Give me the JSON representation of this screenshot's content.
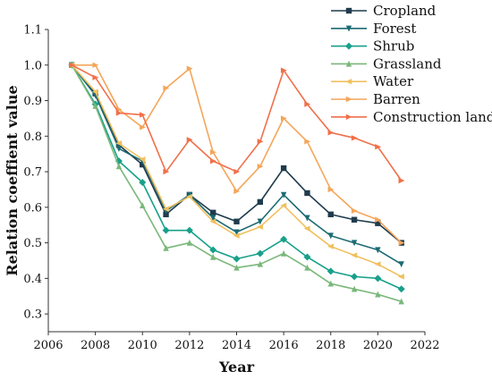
{
  "chart_data": {
    "type": "line",
    "xlabel": "Year",
    "ylabel": "Relation coeffient value",
    "xlim": [
      2006,
      2022
    ],
    "ylim": [
      0.25,
      1.1
    ],
    "xticks": [
      2006,
      2008,
      2010,
      2012,
      2014,
      2016,
      2018,
      2020,
      2022
    ],
    "yticks": [
      0.3,
      0.4,
      0.5,
      0.6,
      0.7,
      0.8,
      0.9,
      1.0,
      1.1
    ],
    "xtick_labels": [
      "2006",
      "2008",
      "2010",
      "2012",
      "2014",
      "2016",
      "2018",
      "2020",
      "2022"
    ],
    "ytick_labels": [
      "0.3",
      "0.4",
      "0.5",
      "0.6",
      "0.7",
      "0.8",
      "0.9",
      "1.0",
      "1.1"
    ],
    "grid": false,
    "legend_position": "top-right",
    "x": [
      2007,
      2008,
      2009,
      2010,
      2011,
      2012,
      2013,
      2014,
      2015,
      2016,
      2017,
      2018,
      2019,
      2020,
      2021
    ],
    "series": [
      {
        "name": "Cropland",
        "color": "#1f3b4d",
        "marker": "square",
        "values": [
          1.0,
          0.92,
          0.775,
          0.72,
          0.58,
          0.635,
          0.585,
          0.56,
          0.615,
          0.71,
          0.64,
          0.58,
          0.565,
          0.555,
          0.5
        ]
      },
      {
        "name": "Forest",
        "color": "#1c6b73",
        "marker": "triangle-down",
        "values": [
          1.0,
          0.915,
          0.765,
          0.73,
          0.59,
          0.635,
          0.57,
          0.53,
          0.56,
          0.635,
          0.57,
          0.52,
          0.5,
          0.48,
          0.44
        ]
      },
      {
        "name": "Shrub",
        "color": "#17a08a",
        "marker": "diamond",
        "values": [
          1.0,
          0.89,
          0.73,
          0.67,
          0.535,
          0.535,
          0.48,
          0.455,
          0.47,
          0.51,
          0.46,
          0.42,
          0.405,
          0.4,
          0.37
        ]
      },
      {
        "name": "Grassland",
        "color": "#7ab87a",
        "marker": "triangle-up",
        "values": [
          1.0,
          0.885,
          0.715,
          0.605,
          0.485,
          0.5,
          0.46,
          0.43,
          0.44,
          0.47,
          0.43,
          0.385,
          0.37,
          0.355,
          0.335
        ]
      },
      {
        "name": "Water",
        "color": "#f0c060",
        "marker": "triangle-left",
        "values": [
          1.0,
          0.925,
          0.78,
          0.735,
          0.595,
          0.63,
          0.56,
          0.52,
          0.545,
          0.605,
          0.54,
          0.49,
          0.465,
          0.44,
          0.405
        ]
      },
      {
        "name": "Barren",
        "color": "#f4a65a",
        "marker": "triangle-right",
        "values": [
          1.0,
          1.0,
          0.875,
          0.825,
          0.935,
          0.99,
          0.755,
          0.645,
          0.715,
          0.85,
          0.785,
          0.65,
          0.59,
          0.565,
          0.5
        ]
      },
      {
        "name": "Construction land",
        "color": "#f0704a",
        "marker": "triangle-right",
        "values": [
          1.0,
          0.965,
          0.865,
          0.86,
          0.7,
          0.79,
          0.73,
          0.7,
          0.785,
          0.985,
          0.89,
          0.81,
          0.795,
          0.77,
          0.675
        ]
      }
    ]
  }
}
